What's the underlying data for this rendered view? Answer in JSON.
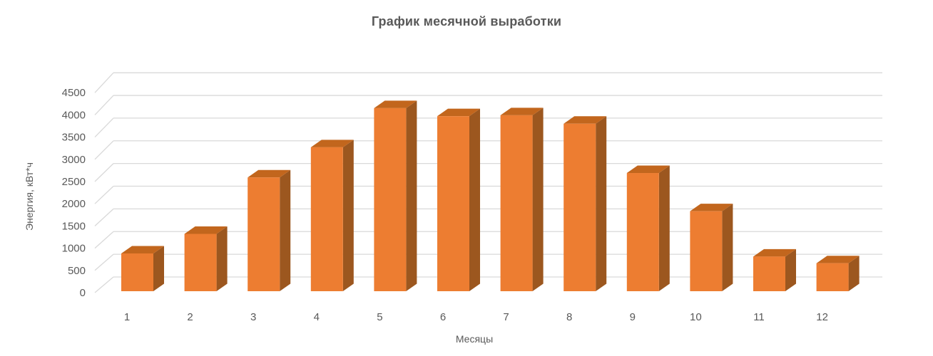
{
  "chart_data": {
    "type": "bar",
    "variant": "3d-column",
    "title": "График месячной выработки",
    "xlabel": "Месяцы",
    "ylabel": "Энергия, кВт*ч",
    "categories": [
      "1",
      "2",
      "3",
      "4",
      "5",
      "6",
      "7",
      "8",
      "9",
      "10",
      "11",
      "12"
    ],
    "series": [
      {
        "name": "Энергия, кВт*ч",
        "values": [
          850,
          1290,
          2560,
          3240,
          4120,
          3940,
          3960,
          3770,
          2660,
          1800,
          780,
          630
        ]
      }
    ],
    "ylim": [
      0,
      4500
    ],
    "yticks": [
      0,
      500,
      1000,
      1500,
      2000,
      2500,
      3000,
      3500,
      4000,
      4500
    ],
    "grid": true,
    "legend": false,
    "colors": {
      "bar_front": "#ED7D31",
      "bar_top": "#C2661D",
      "bar_side": "#9C571F",
      "gridline": "#D9D9D9",
      "text": "#595959"
    }
  }
}
